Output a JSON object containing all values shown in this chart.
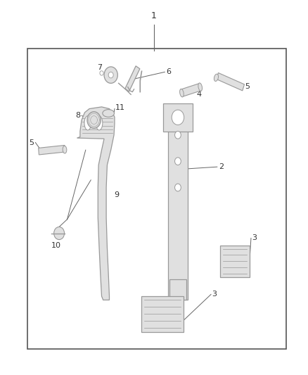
{
  "bg_color": "#ffffff",
  "border_color": "#555555",
  "text_color": "#333333",
  "line_color": "#666666",
  "part_color": "#999999",
  "part_fill": "#e0e0e0",
  "fig_width": 4.38,
  "fig_height": 5.33,
  "dpi": 100
}
